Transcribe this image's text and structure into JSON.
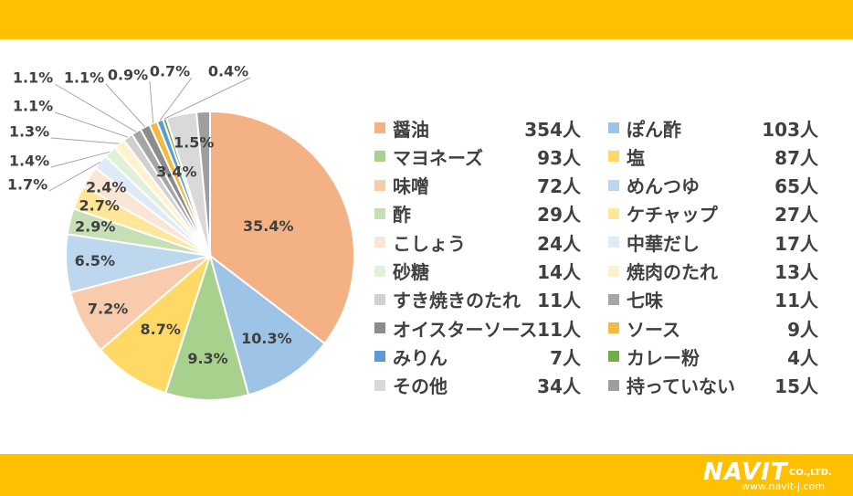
{
  "chart_data": {
    "type": "pie",
    "start_angle_deg": 0,
    "slices": [
      {
        "label": "醤油",
        "percent": 35.4,
        "percent_label": "35.4%",
        "count_label": "354人",
        "color": "#F4B183"
      },
      {
        "label": "ぽん酢",
        "percent": 10.3,
        "percent_label": "10.3%",
        "count_label": "103人",
        "color": "#9DC3E6"
      },
      {
        "label": "マヨネーズ",
        "percent": 9.3,
        "percent_label": "9.3%",
        "count_label": "93人",
        "color": "#A9D18E"
      },
      {
        "label": "塩",
        "percent": 8.7,
        "percent_label": "8.7%",
        "count_label": "87人",
        "color": "#FFD966"
      },
      {
        "label": "味噌",
        "percent": 7.2,
        "percent_label": "7.2%",
        "count_label": "72人",
        "color": "#F8CBAD"
      },
      {
        "label": "めんつゆ",
        "percent": 6.5,
        "percent_label": "6.5%",
        "count_label": "65人",
        "color": "#BDD7EE"
      },
      {
        "label": "酢",
        "percent": 2.9,
        "percent_label": "2.9%",
        "count_label": "29人",
        "color": "#C5E0B4"
      },
      {
        "label": "ケチャップ",
        "percent": 2.7,
        "percent_label": "2.7%",
        "count_label": "27人",
        "color": "#FFE699"
      },
      {
        "label": "こしょう",
        "percent": 2.4,
        "percent_label": "2.4%",
        "count_label": "24人",
        "color": "#FBE5D6"
      },
      {
        "label": "中華だし",
        "percent": 1.7,
        "percent_label": "1.7%",
        "count_label": "17人",
        "color": "#DEEBF7"
      },
      {
        "label": "砂糖",
        "percent": 1.4,
        "percent_label": "1.4%",
        "count_label": "14人",
        "color": "#E2F0D9"
      },
      {
        "label": "焼肉のたれ",
        "percent": 1.3,
        "percent_label": "1.3%",
        "count_label": "13人",
        "color": "#FFF2CC"
      },
      {
        "label": "すき焼きのたれ",
        "percent": 1.1,
        "percent_label": "1.1%",
        "count_label": "11人",
        "color": "#D0D0D0"
      },
      {
        "label": "七味",
        "percent": 1.1,
        "percent_label": "1.1%",
        "count_label": "11人",
        "color": "#A5A5A5"
      },
      {
        "label": "オイスターソース",
        "percent": 1.1,
        "percent_label": "1.1%",
        "count_label": "11人",
        "color": "#8C8C8C"
      },
      {
        "label": "ソース",
        "percent": 0.9,
        "percent_label": "0.9%",
        "count_label": "9人",
        "color": "#F4B942"
      },
      {
        "label": "みりん",
        "percent": 0.7,
        "percent_label": "0.7%",
        "count_label": "7人",
        "color": "#5B9BD5"
      },
      {
        "label": "カレー粉",
        "percent": 0.4,
        "percent_label": "0.4%",
        "count_label": "4人",
        "color": "#70AD47"
      },
      {
        "label": "その他",
        "percent": 3.4,
        "percent_label": "3.4%",
        "count_label": "34人",
        "color": "#D9D9D9"
      },
      {
        "label": "持っていない",
        "percent": 1.5,
        "percent_label": "1.5%",
        "count_label": "15人",
        "color": "#9E9E9E"
      }
    ],
    "legend_placement": "right"
  },
  "brand": {
    "logo_text": "NAVIT",
    "logo_suffix": "CO.,LTD.",
    "url": "www.navit-j.com",
    "band_color": "#FFC000"
  }
}
